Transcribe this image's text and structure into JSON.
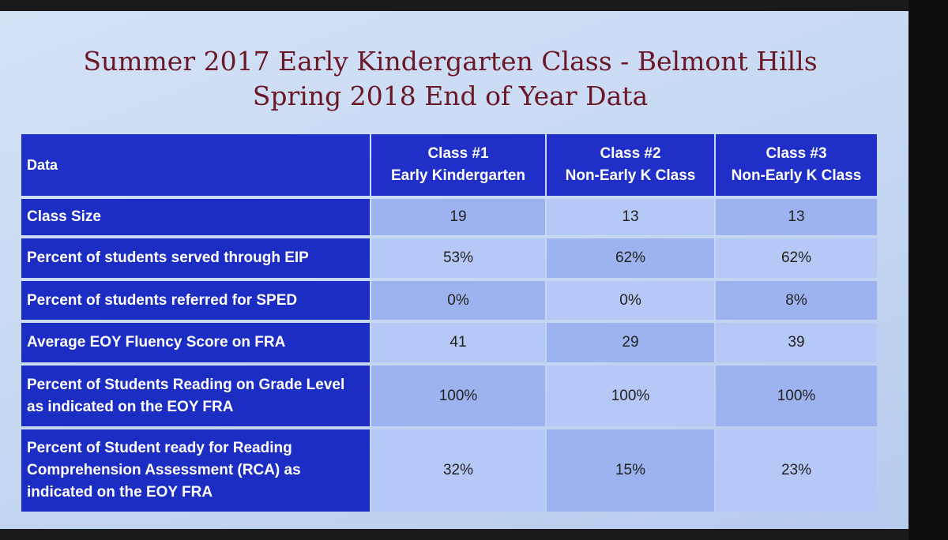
{
  "header": {
    "title_lines": [
      "Summer 2017 Early Kindergarten Class - Belmont Hills",
      "Spring 2018 End of Year Data"
    ]
  },
  "table": {
    "columns": [
      [
        "Data"
      ],
      [
        "Class #1",
        "Early Kindergarten"
      ],
      [
        "Class #2",
        "Non-Early K Class"
      ],
      [
        "Class #3",
        "Non-Early K Class"
      ]
    ],
    "rows": [
      {
        "label": "Class Size",
        "cells": [
          "19",
          "13",
          "13"
        ]
      },
      {
        "label": "Percent of students served through EIP",
        "cells": [
          "53%",
          "62%",
          "62%"
        ]
      },
      {
        "label": "Percent of students  referred for SPED",
        "cells": [
          "0%",
          "0%",
          "8%"
        ]
      },
      {
        "label": "Average EOY Fluency Score on FRA",
        "cells": [
          "41",
          "29",
          "39"
        ]
      },
      {
        "label": "Percent of Students Reading on Grade Level as indicated on the EOY FRA",
        "cells": [
          "100%",
          "100%",
          "100%"
        ]
      },
      {
        "label": "Percent of Student ready for Reading Comprehension Assessment (RCA) as indicated on the EOY FRA",
        "cells": [
          "32%",
          "15%",
          "23%"
        ]
      }
    ]
  }
}
